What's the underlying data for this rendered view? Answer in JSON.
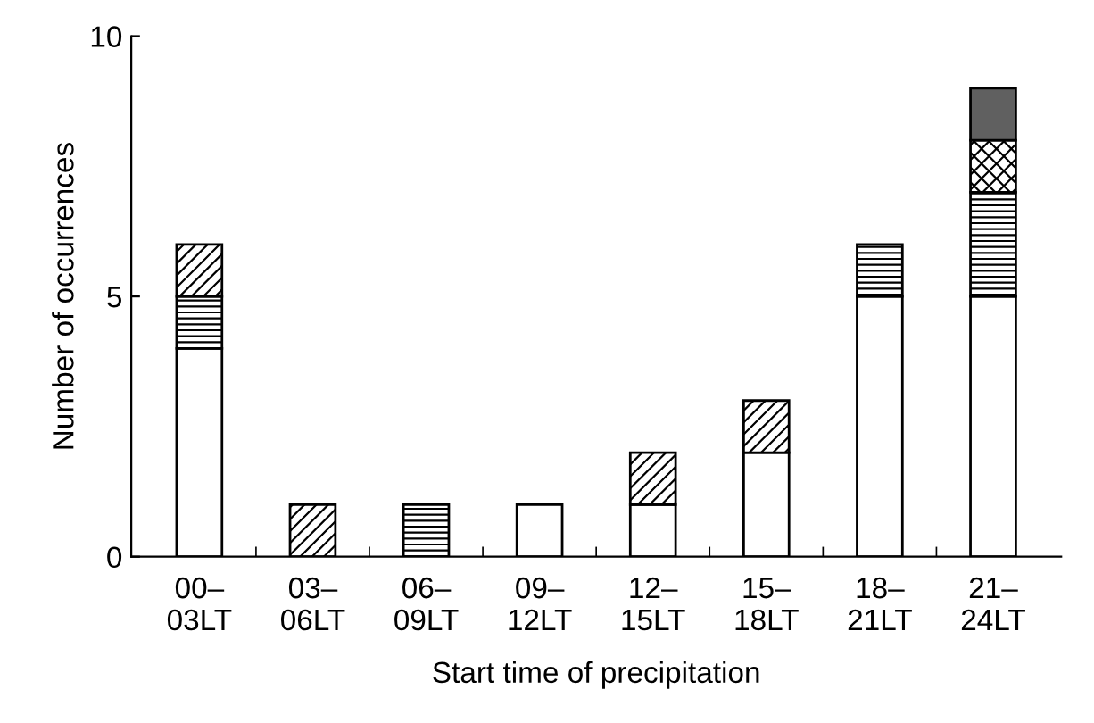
{
  "chart_data": {
    "type": "bar",
    "stacked": true,
    "xlabel": "Start time of precipitation",
    "ylabel": "Number of occurrences",
    "categories": [
      "00–\n03LT",
      "03–\n06LT",
      "06–\n09LT",
      "09–\n12LT",
      "12–\n15LT",
      "15–\n18LT",
      "18–\n21LT",
      "21–\n24LT"
    ],
    "series": [
      {
        "color": "#ffffff",
        "values": [
          4,
          0,
          0,
          1,
          1,
          2,
          5,
          5
        ]
      },
      {
        "color": "#000000",
        "values": [
          1,
          0,
          1,
          0,
          0,
          0,
          1,
          2
        ]
      },
      {
        "color": "#000000",
        "values": [
          1,
          1,
          0,
          0,
          1,
          1,
          0,
          0
        ]
      },
      {
        "color": "#000000",
        "values": [
          0,
          0,
          0,
          0,
          0,
          0,
          0,
          1
        ]
      },
      {
        "color": "#606060",
        "values": [
          0,
          0,
          0,
          0,
          0,
          0,
          0,
          1
        ]
      }
    ],
    "ylim": [
      0,
      10
    ],
    "yticks": [
      0,
      5,
      10
    ],
    "grid": false
  }
}
